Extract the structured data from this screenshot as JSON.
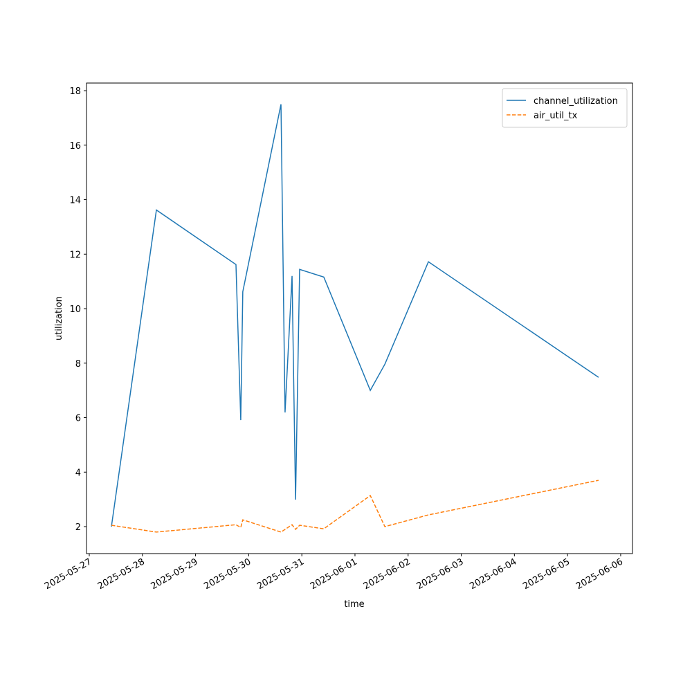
{
  "chart_data": {
    "type": "line",
    "xlabel": "time",
    "ylabel": "utilization",
    "x": [
      "2025-05-27T10:00",
      "2025-05-28T06:19",
      "2025-05-29T18:15",
      "2025-05-29T20:25",
      "2025-05-29T21:20",
      "2025-05-30T14:35",
      "2025-05-30T16:25",
      "2025-05-30T19:35",
      "2025-05-30T21:10",
      "2025-05-30T23:00",
      "2025-05-31T09:55",
      "2025-06-01T06:55",
      "2025-06-01T13:30",
      "2025-06-02T09:10",
      "2025-06-05T14:00"
    ],
    "series": [
      {
        "name": "channel_utilization",
        "color": "#1f77b4",
        "dash": false,
        "values": [
          2.0,
          13.62,
          11.62,
          5.91,
          10.62,
          17.5,
          6.19,
          11.2,
          2.99,
          11.44,
          11.16,
          7.0,
          7.96,
          11.72,
          7.48
        ]
      },
      {
        "name": "air_util_tx",
        "color": "#ff7f0e",
        "dash": true,
        "values": [
          2.05,
          1.8,
          2.07,
          1.97,
          2.25,
          1.8,
          1.9,
          2.07,
          1.9,
          2.05,
          1.92,
          3.14,
          2.0,
          2.43,
          3.7
        ]
      }
    ],
    "xlim": [
      "2025-05-26T22:45",
      "2025-06-06T05:20"
    ],
    "xticks": [
      "2025-05-27",
      "2025-05-28",
      "2025-05-29",
      "2025-05-30",
      "2025-05-31",
      "2025-06-01",
      "2025-06-02",
      "2025-06-03",
      "2025-06-04",
      "2025-06-05",
      "2025-06-06"
    ],
    "ylim": [
      1.01,
      18.28
    ],
    "yticks": [
      2,
      4,
      6,
      8,
      10,
      12,
      14,
      16,
      18
    ],
    "legend": "upper right"
  }
}
